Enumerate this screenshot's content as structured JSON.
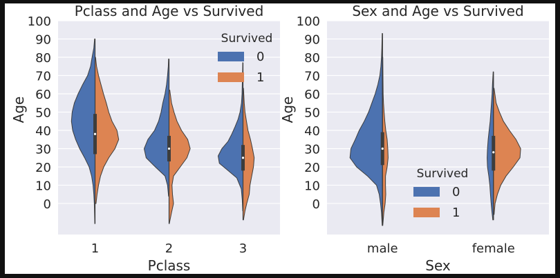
{
  "chart_data": [
    {
      "type": "violin",
      "title": "Pclass and Age vs Survived",
      "xlabel": "Pclass",
      "ylabel": "Age",
      "categories": [
        "1",
        "2",
        "3"
      ],
      "y_ticks": [
        0,
        10,
        20,
        30,
        40,
        50,
        60,
        70,
        80,
        90,
        100
      ],
      "ylim": [
        -17,
        100
      ],
      "split": true,
      "grid": true,
      "legend": {
        "title": "Survived",
        "entries": [
          "0",
          "1"
        ],
        "placement": "top-right"
      },
      "series": [
        {
          "name": "0",
          "color": "#4c72b0",
          "violins": [
            {
              "category": "1",
              "min": -11,
              "max": 90,
              "median": 38,
              "q1": 27,
              "q3": 49,
              "density": [
                [
                  -11,
                  0.01
                ],
                [
                  0,
                  0.03
                ],
                [
                  5,
                  0.05
                ],
                [
                  10,
                  0.08
                ],
                [
                  15,
                  0.14
                ],
                [
                  20,
                  0.24
                ],
                [
                  25,
                  0.42
                ],
                [
                  30,
                  0.62
                ],
                [
                  35,
                  0.78
                ],
                [
                  40,
                  0.9
                ],
                [
                  45,
                  0.95
                ],
                [
                  50,
                  0.92
                ],
                [
                  55,
                  0.83
                ],
                [
                  60,
                  0.68
                ],
                [
                  65,
                  0.5
                ],
                [
                  70,
                  0.3
                ],
                [
                  75,
                  0.18
                ],
                [
                  80,
                  0.12
                ],
                [
                  85,
                  0.05
                ],
                [
                  90,
                  0.02
                ]
              ]
            },
            {
              "category": "2",
              "min": 4,
              "max": 79,
              "median": 30,
              "q1": 23,
              "q3": 37,
              "density": [
                [
                  4,
                  0.02
                ],
                [
                  10,
                  0.06
                ],
                [
                  15,
                  0.16
                ],
                [
                  20,
                  0.55
                ],
                [
                  25,
                  0.92
                ],
                [
                  30,
                  1.0
                ],
                [
                  35,
                  0.85
                ],
                [
                  40,
                  0.58
                ],
                [
                  45,
                  0.42
                ],
                [
                  50,
                  0.32
                ],
                [
                  55,
                  0.25
                ],
                [
                  60,
                  0.16
                ],
                [
                  65,
                  0.1
                ],
                [
                  70,
                  0.06
                ],
                [
                  75,
                  0.03
                ],
                [
                  79,
                  0.02
                ]
              ]
            },
            {
              "category": "3",
              "min": -4,
              "max": 77,
              "median": 25,
              "q1": 18,
              "q3": 32,
              "density": [
                [
                  -4,
                  0.01
                ],
                [
                  2,
                  0.03
                ],
                [
                  8,
                  0.07
                ],
                [
                  14,
                  0.25
                ],
                [
                  18,
                  0.6
                ],
                [
                  22,
                  0.95
                ],
                [
                  26,
                  1.0
                ],
                [
                  30,
                  0.85
                ],
                [
                  34,
                  0.6
                ],
                [
                  38,
                  0.45
                ],
                [
                  42,
                  0.32
                ],
                [
                  46,
                  0.2
                ],
                [
                  50,
                  0.12
                ],
                [
                  55,
                  0.06
                ],
                [
                  60,
                  0.04
                ],
                [
                  65,
                  0.03
                ],
                [
                  70,
                  0.02
                ],
                [
                  77,
                  0.01
                ]
              ]
            }
          ]
        },
        {
          "name": "1",
          "color": "#dd8452",
          "violins": [
            {
              "category": "1",
              "min": 0,
              "max": 80,
              "median": 37,
              "q1": 26,
              "q3": 48,
              "density": [
                [
                  0,
                  0.04
                ],
                [
                  5,
                  0.08
                ],
                [
                  10,
                  0.14
                ],
                [
                  15,
                  0.22
                ],
                [
                  20,
                  0.35
                ],
                [
                  25,
                  0.55
                ],
                [
                  30,
                  0.8
                ],
                [
                  35,
                  0.95
                ],
                [
                  40,
                  0.88
                ],
                [
                  45,
                  0.68
                ],
                [
                  50,
                  0.55
                ],
                [
                  55,
                  0.45
                ],
                [
                  60,
                  0.34
                ],
                [
                  65,
                  0.24
                ],
                [
                  70,
                  0.14
                ],
                [
                  75,
                  0.06
                ],
                [
                  80,
                  0.02
                ]
              ]
            },
            {
              "category": "2",
              "min": -11,
              "max": 62,
              "median": 29,
              "q1": 22,
              "q3": 36,
              "density": [
                [
                  -11,
                  0.01
                ],
                [
                  -5,
                  0.1
                ],
                [
                  0,
                  0.18
                ],
                [
                  5,
                  0.14
                ],
                [
                  10,
                  0.12
                ],
                [
                  15,
                  0.18
                ],
                [
                  20,
                  0.45
                ],
                [
                  25,
                  0.72
                ],
                [
                  30,
                  0.85
                ],
                [
                  35,
                  0.75
                ],
                [
                  40,
                  0.5
                ],
                [
                  45,
                  0.32
                ],
                [
                  50,
                  0.2
                ],
                [
                  55,
                  0.1
                ],
                [
                  62,
                  0.03
                ]
              ]
            },
            {
              "category": "3",
              "min": -9,
              "max": 63,
              "median": 25,
              "q1": 18,
              "q3": 34,
              "density": [
                [
                  -9,
                  0.02
                ],
                [
                  -4,
                  0.08
                ],
                [
                  0,
                  0.15
                ],
                [
                  5,
                  0.25
                ],
                [
                  10,
                  0.28
                ],
                [
                  15,
                  0.35
                ],
                [
                  20,
                  0.42
                ],
                [
                  25,
                  0.45
                ],
                [
                  30,
                  0.38
                ],
                [
                  35,
                  0.3
                ],
                [
                  40,
                  0.2
                ],
                [
                  45,
                  0.14
                ],
                [
                  50,
                  0.08
                ],
                [
                  55,
                  0.05
                ],
                [
                  63,
                  0.02
                ]
              ]
            }
          ]
        }
      ]
    },
    {
      "type": "violin",
      "title": "Sex and Age vs Survived",
      "xlabel": "Sex",
      "ylabel": "Age",
      "categories": [
        "male",
        "female"
      ],
      "y_ticks": [
        0,
        10,
        20,
        30,
        40,
        50,
        60,
        70,
        80,
        90,
        100
      ],
      "ylim": [
        -17,
        100
      ],
      "split": true,
      "grid": true,
      "legend": {
        "title": "Survived",
        "entries": [
          "0",
          "1"
        ],
        "placement": "lower-center"
      },
      "series": [
        {
          "name": "0",
          "color": "#4c72b0",
          "violins": [
            {
              "category": "male",
              "min": -12,
              "max": 93,
              "median": 30,
              "q1": 21,
              "q3": 39,
              "density": [
                [
                  -12,
                  0.01
                ],
                [
                  -5,
                  0.03
                ],
                [
                  0,
                  0.06
                ],
                [
                  5,
                  0.1
                ],
                [
                  10,
                  0.18
                ],
                [
                  15,
                  0.45
                ],
                [
                  20,
                  0.78
                ],
                [
                  25,
                  0.98
                ],
                [
                  30,
                  0.95
                ],
                [
                  35,
                  0.82
                ],
                [
                  40,
                  0.7
                ],
                [
                  45,
                  0.55
                ],
                [
                  50,
                  0.42
                ],
                [
                  55,
                  0.32
                ],
                [
                  60,
                  0.22
                ],
                [
                  65,
                  0.14
                ],
                [
                  70,
                  0.08
                ],
                [
                  75,
                  0.05
                ],
                [
                  80,
                  0.03
                ],
                [
                  85,
                  0.02
                ],
                [
                  93,
                  0.01
                ]
              ]
            },
            {
              "category": "female",
              "min": -9,
              "max": 72,
              "median": 28,
              "q1": 18,
              "q3": 37,
              "density": [
                [
                  -9,
                  0.02
                ],
                [
                  -4,
                  0.05
                ],
                [
                  0,
                  0.07
                ],
                [
                  5,
                  0.09
                ],
                [
                  10,
                  0.11
                ],
                [
                  15,
                  0.14
                ],
                [
                  20,
                  0.18
                ],
                [
                  25,
                  0.19
                ],
                [
                  30,
                  0.18
                ],
                [
                  35,
                  0.16
                ],
                [
                  40,
                  0.13
                ],
                [
                  45,
                  0.1
                ],
                [
                  50,
                  0.08
                ],
                [
                  55,
                  0.06
                ],
                [
                  60,
                  0.04
                ],
                [
                  65,
                  0.03
                ],
                [
                  72,
                  0.01
                ]
              ]
            }
          ]
        },
        {
          "name": "1",
          "color": "#dd8452",
          "violins": [
            {
              "category": "male",
              "min": -12,
              "max": 80,
              "median": 28,
              "q1": 22,
              "q3": 37,
              "density": [
                [
                  -12,
                  0.01
                ],
                [
                  -5,
                  0.04
                ],
                [
                  0,
                  0.08
                ],
                [
                  5,
                  0.1
                ],
                [
                  10,
                  0.09
                ],
                [
                  15,
                  0.09
                ],
                [
                  20,
                  0.14
                ],
                [
                  25,
                  0.17
                ],
                [
                  30,
                  0.16
                ],
                [
                  35,
                  0.14
                ],
                [
                  40,
                  0.1
                ],
                [
                  45,
                  0.07
                ],
                [
                  50,
                  0.05
                ],
                [
                  55,
                  0.03
                ],
                [
                  60,
                  0.02
                ],
                [
                  80,
                  0.01
                ]
              ]
            },
            {
              "category": "female",
              "min": -6,
              "max": 63,
              "median": 27,
              "q1": 19,
              "q3": 36,
              "density": [
                [
                  -6,
                  0.02
                ],
                [
                  0,
                  0.05
                ],
                [
                  5,
                  0.12
                ],
                [
                  10,
                  0.22
                ],
                [
                  15,
                  0.38
                ],
                [
                  20,
                  0.6
                ],
                [
                  25,
                  0.8
                ],
                [
                  30,
                  0.82
                ],
                [
                  35,
                  0.68
                ],
                [
                  40,
                  0.48
                ],
                [
                  45,
                  0.3
                ],
                [
                  50,
                  0.18
                ],
                [
                  55,
                  0.08
                ],
                [
                  63,
                  0.02
                ]
              ]
            }
          ]
        }
      ]
    }
  ]
}
